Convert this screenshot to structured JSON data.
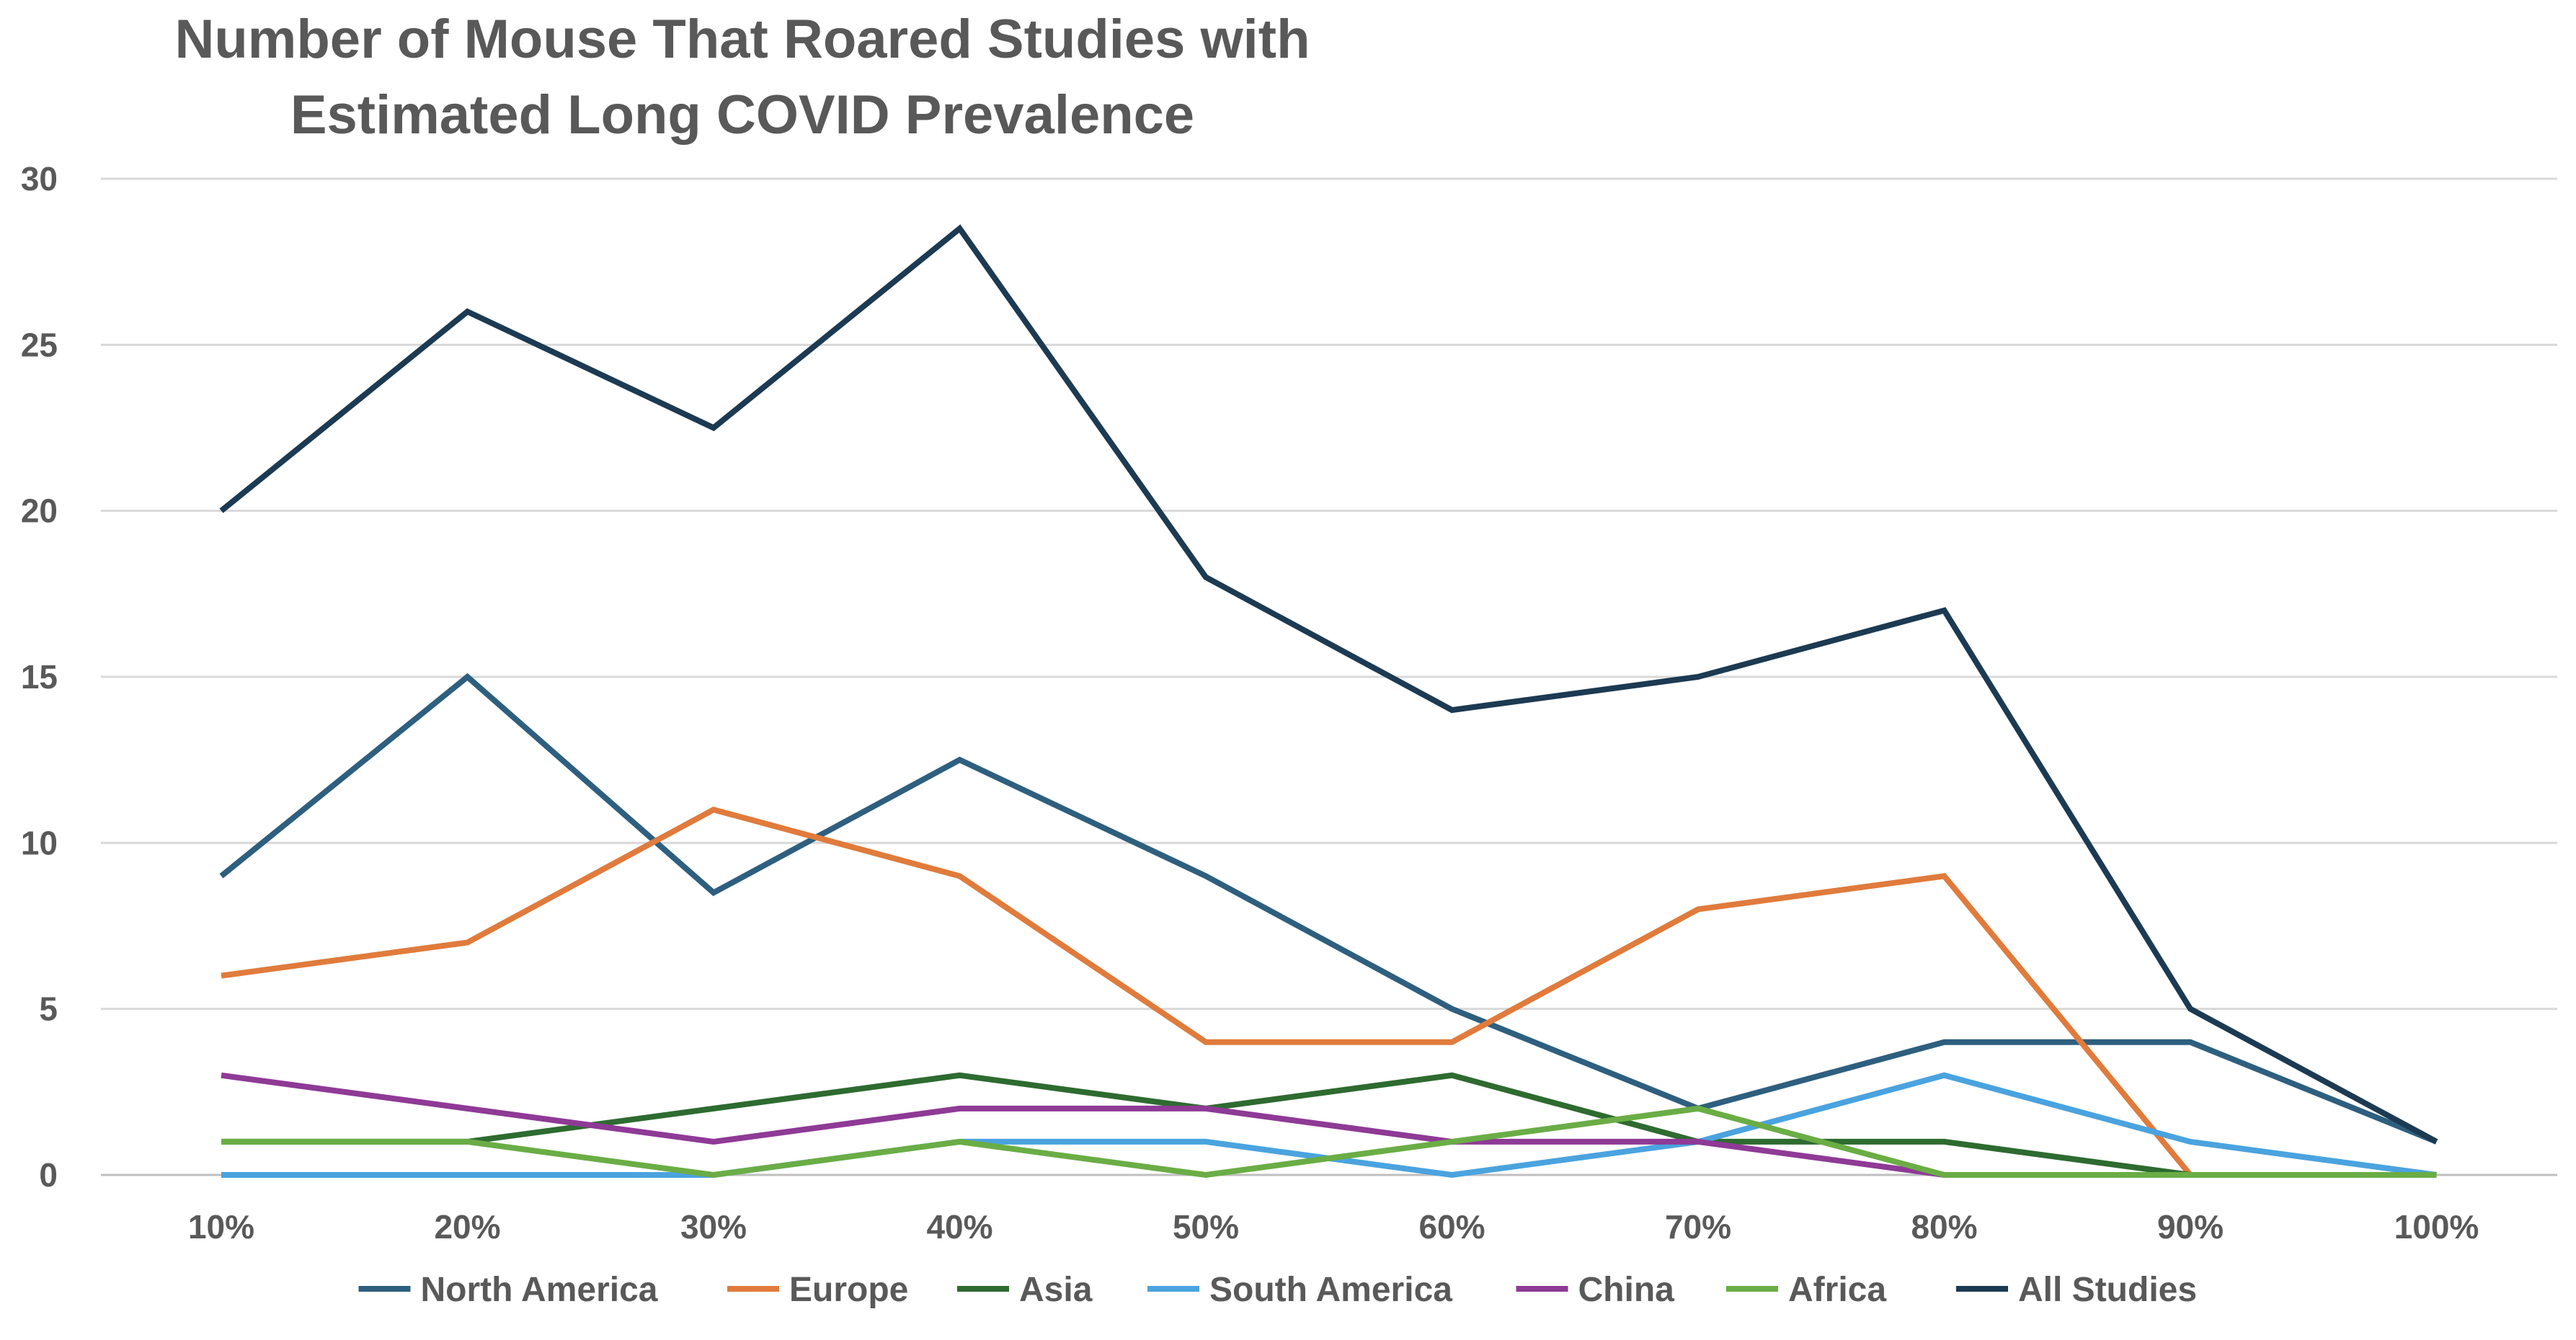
{
  "chart_data": {
    "type": "line",
    "title": [
      "Number of Mouse That Roared Studies with",
      "Estimated Long COVID Prevalence"
    ],
    "xlabel": "",
    "ylabel": "",
    "categories": [
      "10%",
      "20%",
      "30%",
      "40%",
      "50%",
      "60%",
      "70%",
      "80%",
      "90%",
      "100%"
    ],
    "ylim": [
      0,
      30
    ],
    "yticks": [
      0,
      5,
      10,
      15,
      20,
      25,
      30
    ],
    "grid": true,
    "legend_position": "bottom",
    "series": [
      {
        "name": "North America",
        "color": "#2e5f7f",
        "values": [
          9,
          15,
          8.5,
          12.5,
          9,
          5,
          2,
          4,
          4,
          1
        ]
      },
      {
        "name": "Europe",
        "color": "#e07b3c",
        "values": [
          6,
          7,
          11,
          9,
          4,
          4,
          8,
          9,
          0,
          null
        ]
      },
      {
        "name": "Asia",
        "color": "#2e6b30",
        "values": [
          1,
          1,
          2,
          3,
          2,
          3,
          1,
          1,
          0,
          0
        ]
      },
      {
        "name": "South America",
        "color": "#4aa3df",
        "values": [
          0,
          0,
          0,
          1,
          1,
          0,
          1,
          3,
          1,
          0
        ]
      },
      {
        "name": "China",
        "color": "#8e3a96",
        "values": [
          3,
          2,
          1,
          2,
          2,
          1,
          1,
          0,
          0,
          0
        ]
      },
      {
        "name": "Africa",
        "color": "#6aad45",
        "values": [
          1,
          1,
          0,
          1,
          0,
          1,
          2,
          0,
          0,
          0
        ]
      },
      {
        "name": "All Studies",
        "color": "#1c3a52",
        "values": [
          20,
          26,
          22.5,
          28.5,
          18,
          14,
          15,
          17,
          5,
          1
        ]
      }
    ]
  }
}
